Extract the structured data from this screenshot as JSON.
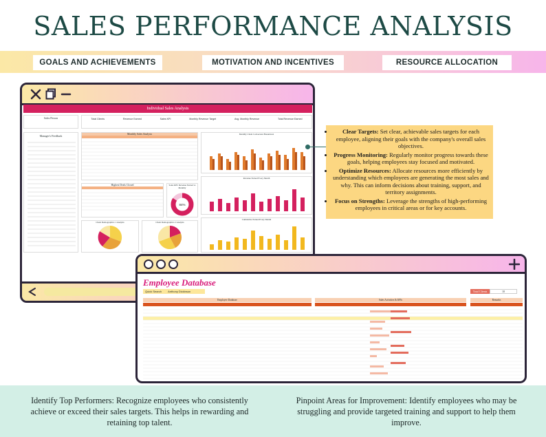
{
  "page": {
    "title": "SALES PERFORMANCE ANALYSIS"
  },
  "pills": [
    {
      "label": "GOALS AND ACHIEVEMENTS"
    },
    {
      "label": "MOTIVATION AND INCENTIVES"
    },
    {
      "label": "RESOURCE ALLOCATION"
    }
  ],
  "window1": {
    "sheet_title": "Individual Sales Analysis",
    "sales_person": "Sales Person",
    "kpis": [
      "Total Clients",
      "Revenue Earned",
      "Sales KPI",
      "Monthly Revenue Target",
      "Avg. Monthly Revenue",
      "Total Revenue Earned"
    ],
    "managers_feedback": "Manager's Feedback",
    "monthly_table_title": "Monthly Sales Analysis",
    "deals_title": "Highest Deals Closed",
    "kpi_gauge_title": "Sales KPI: Revenue Earned vs Monthly",
    "gauge_value": "84%",
    "chart_titles": [
      "Monthly Client Conversion Breakdown",
      "Revenue Earned Every Month",
      "Cumulative Earned Every Month"
    ],
    "pie_titles": [
      "Client Demographics 1 Analysis",
      "Client Demographics 2 Analysis"
    ]
  },
  "window2": {
    "title": "Employee Database",
    "search_label": "Quick Search",
    "search_value": "Anthony Dickinson",
    "total_clients_label": "Total Clients",
    "total_clients_value": "10",
    "table_title": "Employee Database",
    "activities_title": "Sales Activities & KPIs",
    "remarks_title": "Remarks"
  },
  "callout": {
    "items": [
      {
        "head": "Clear Targets:",
        "text": "Set clear, achievable sales targets for each employee, aligning their goals with the company's overall sales objectives."
      },
      {
        "head": "Progress Monitoring:",
        "text": "Regularly monitor progress towards these goals, helping employees stay focused and motivated."
      },
      {
        "head": "Optimize Resources:",
        "text": "Allocate resources more efficiently by understanding which employees are generating the most sales and why. This can inform decisions about training, support, and territory assignments."
      },
      {
        "head": "Focus on Strengths:",
        "text": "Leverage the strengths of high-performing employees in critical areas or for key accounts."
      }
    ]
  },
  "bottom": {
    "left": "Identify Top Performers: Recognize employees who consistently achieve or exceed their sales targets. This helps in rewarding and retaining top talent.",
    "right": "Pinpoint Areas for Improvement: Identify employees who may be struggling and provide targeted training and support to help them improve."
  },
  "colors": {
    "title": "#1d4a45",
    "accent_pink": "#d81b7a",
    "callout_bg": "#fcd782",
    "bottom_bg": "#d3efe6"
  }
}
